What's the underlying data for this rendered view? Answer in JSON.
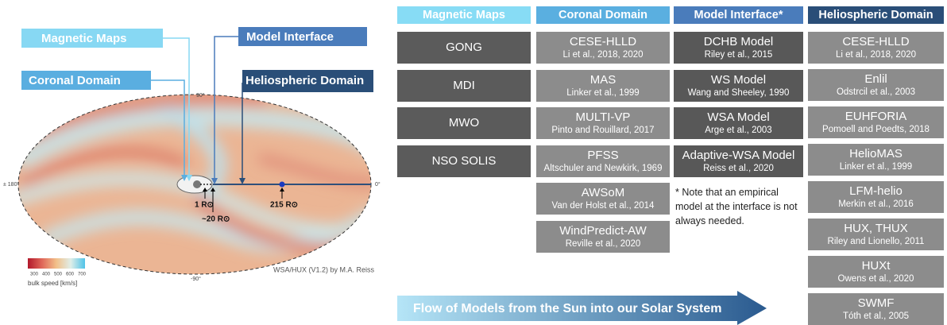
{
  "figure": {
    "callouts": {
      "magnetic_maps": "Magnetic Maps",
      "model_interface": "Model Interface",
      "coronal_domain": "Coronal Domain",
      "heliospheric_domain": "Heliospheric Domain"
    },
    "angles": {
      "top": "90°",
      "left": "± 180°",
      "right": "0°",
      "bottom": "-90°"
    },
    "distances": {
      "sun": "1 R⊙",
      "interface": "~20 R⊙",
      "earth": "215 R⊙"
    },
    "credit": "WSA/HUX (V1.2) by M.A. Reiss",
    "colorbar": {
      "ticks": [
        300,
        400,
        500,
        600,
        700
      ],
      "label": "bulk speed [km/s]"
    }
  },
  "columns": [
    {
      "header": "Magnetic Maps",
      "items": [
        {
          "name": "GONG"
        },
        {
          "name": "MDI"
        },
        {
          "name": "MWO"
        },
        {
          "name": "NSO SOLIS"
        }
      ]
    },
    {
      "header": "Coronal Domain",
      "items": [
        {
          "name": "CESE-HLLD",
          "ref": "Li et al., 2018, 2020"
        },
        {
          "name": "MAS",
          "ref": "Linker et al., 1999"
        },
        {
          "name": "MULTI-VP",
          "ref": "Pinto and Rouillard, 2017"
        },
        {
          "name": "PFSS",
          "ref": "Altschuler and Newkirk, 1969"
        },
        {
          "name": "AWSoM",
          "ref": "Van der Holst et al., 2014"
        },
        {
          "name": "WindPredict-AW",
          "ref": "Reville et al., 2020"
        }
      ]
    },
    {
      "header": "Model Interface*",
      "items": [
        {
          "name": "DCHB Model",
          "ref": "Riley et al., 2015"
        },
        {
          "name": "WS Model",
          "ref": "Wang and Sheeley, 1990"
        },
        {
          "name": "WSA Model",
          "ref": "Arge et al., 2003"
        },
        {
          "name": "Adaptive-WSA Model",
          "ref": "Reiss et al., 2020"
        }
      ]
    },
    {
      "header": "Heliospheric Domain",
      "items": [
        {
          "name": "CESE-HLLD",
          "ref": "Li et al., 2018, 2020"
        },
        {
          "name": "Enlil",
          "ref": "Odstrcil et al., 2003"
        },
        {
          "name": "EUHFORIA",
          "ref": "Pomoell and Poedts, 2018"
        },
        {
          "name": "HelioMAS",
          "ref": "Linker et al., 1999"
        },
        {
          "name": "LFM-helio",
          "ref": "Merkin et al., 2016"
        },
        {
          "name": "HUX, THUX",
          "ref": "Riley and Lionello, 2011"
        },
        {
          "name": "HUXt",
          "ref": "Owens et al., 2020"
        },
        {
          "name": "SWMF",
          "ref": "Tóth et al., 2005"
        }
      ]
    }
  ],
  "note": "* Note that an empirical model at the interface is not always needed.",
  "flow": "Flow of Models from the Sun into our Solar System"
}
